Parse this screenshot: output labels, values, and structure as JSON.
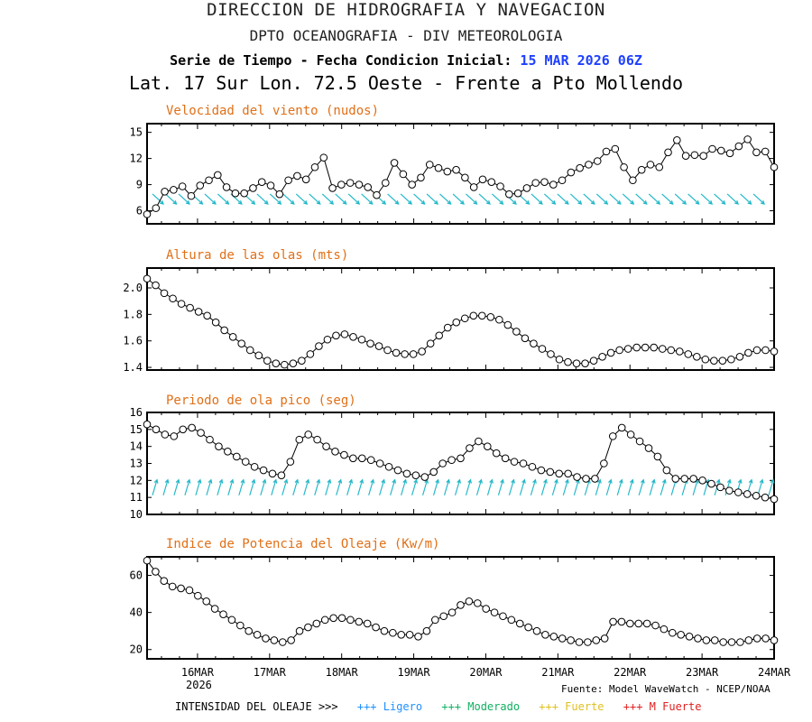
{
  "header": {
    "line1": "DIRECCION DE HIDROGRAFIA Y NAVEGACION",
    "line2": "DPTO OCEANOGRAFIA - DIV METEOROLOGIA",
    "line3_label": "Serie de Tiempo - Fecha Condicion Inicial:",
    "line3_date": "15 MAR 2026 06Z",
    "line4": "Lat. 17 Sur  Lon. 72.5 Oeste - Frente a Pto Mollendo"
  },
  "colors": {
    "title_orange": "#e07018",
    "date_blue": "#1e40ff",
    "arrow_cyan": "#22b8c8"
  },
  "x_axis": {
    "ticks": [
      "16MAR",
      "17MAR",
      "18MAR",
      "19MAR",
      "20MAR",
      "21MAR",
      "22MAR",
      "23MAR",
      "24MAR"
    ],
    "year": "2026",
    "range": [
      -0.7,
      8.0
    ]
  },
  "source": "Fuente: Model WaveWatch - NCEP/NOAA",
  "legend": {
    "prefix": "INTENSIDAD DEL OLEAJE >>>",
    "items": [
      {
        "label": "+++ Ligero",
        "color": "#1e90ff"
      },
      {
        "label": "+++ Moderado",
        "color": "#10b060"
      },
      {
        "label": "+++ Fuerte",
        "color": "#e0c020"
      },
      {
        "label": "+++ M Fuerte",
        "color": "#e02020"
      }
    ]
  },
  "chart_data": [
    {
      "type": "line",
      "title": "Velocidad del viento (nudos)",
      "yticks": [
        6,
        9,
        12,
        15
      ],
      "ylim": [
        4.5,
        16
      ],
      "arrows": "wind-direction",
      "series": [
        {
          "values": [
            5.6,
            6.3,
            8.2,
            8.4,
            8.8,
            7.7,
            8.9,
            9.5,
            10.1,
            8.7,
            8.0,
            8.0,
            8.6,
            9.3,
            8.9,
            7.9,
            9.5,
            10.0,
            9.6,
            11.0,
            12.1,
            8.6,
            9.0,
            9.2,
            9.0,
            8.7,
            7.8,
            9.2,
            11.5,
            10.2,
            9.0,
            9.8,
            11.3,
            10.9,
            10.5,
            10.7,
            9.8,
            8.7,
            9.6,
            9.3,
            8.8,
            7.9,
            8.0,
            8.6,
            9.2,
            9.3,
            9.0,
            9.5,
            10.4,
            10.9,
            11.3,
            11.7,
            12.8,
            13.1,
            11.0,
            9.5,
            10.7,
            11.3,
            11.0,
            12.7,
            14.1,
            12.3,
            12.4,
            12.3,
            13.1,
            12.9,
            12.6,
            13.4,
            14.2,
            12.7,
            12.8,
            11.0
          ]
        }
      ]
    },
    {
      "type": "line",
      "title": "Altura de las olas (mts)",
      "yticks": [
        1.4,
        1.6,
        1.8,
        2.0
      ],
      "ytick_labels": [
        "1.4",
        "1.6",
        "1.8",
        "2.0"
      ],
      "ylim": [
        1.38,
        2.15
      ],
      "series": [
        {
          "values": [
            2.07,
            2.02,
            1.96,
            1.92,
            1.88,
            1.85,
            1.82,
            1.79,
            1.74,
            1.68,
            1.63,
            1.58,
            1.53,
            1.49,
            1.45,
            1.43,
            1.42,
            1.43,
            1.45,
            1.5,
            1.56,
            1.61,
            1.64,
            1.65,
            1.63,
            1.61,
            1.58,
            1.56,
            1.53,
            1.51,
            1.5,
            1.5,
            1.52,
            1.58,
            1.64,
            1.7,
            1.74,
            1.77,
            1.79,
            1.79,
            1.78,
            1.76,
            1.72,
            1.67,
            1.62,
            1.58,
            1.54,
            1.5,
            1.46,
            1.44,
            1.43,
            1.43,
            1.45,
            1.48,
            1.51,
            1.53,
            1.54,
            1.55,
            1.55,
            1.55,
            1.54,
            1.53,
            1.52,
            1.5,
            1.48,
            1.46,
            1.45,
            1.45,
            1.46,
            1.48,
            1.51,
            1.53,
            1.53,
            1.52
          ]
        }
      ]
    },
    {
      "type": "line",
      "title": "Periodo de ola pico (seg)",
      "yticks": [
        10,
        11,
        12,
        13,
        14,
        15,
        16
      ],
      "ylim": [
        10,
        16
      ],
      "arrows": "wave-direction",
      "series": [
        {
          "values": [
            15.3,
            15.0,
            14.7,
            14.6,
            15.0,
            15.1,
            14.8,
            14.4,
            14.0,
            13.7,
            13.4,
            13.1,
            12.8,
            12.6,
            12.4,
            12.3,
            13.1,
            14.4,
            14.7,
            14.4,
            14.0,
            13.7,
            13.5,
            13.3,
            13.3,
            13.2,
            13.0,
            12.8,
            12.6,
            12.4,
            12.3,
            12.2,
            12.5,
            13.0,
            13.2,
            13.3,
            13.9,
            14.3,
            14.0,
            13.6,
            13.3,
            13.1,
            13.0,
            12.8,
            12.6,
            12.5,
            12.4,
            12.4,
            12.2,
            12.1,
            12.1,
            13.0,
            14.6,
            15.1,
            14.7,
            14.3,
            13.9,
            13.4,
            12.6,
            12.1,
            12.1,
            12.1,
            12.0,
            11.8,
            11.6,
            11.4,
            11.3,
            11.2,
            11.1,
            11.0,
            10.9
          ]
        }
      ]
    },
    {
      "type": "line",
      "title": "Indice de Potencia del Oleaje (Kw/m)",
      "yticks": [
        20,
        40,
        60
      ],
      "ylim": [
        15,
        70
      ],
      "series": [
        {
          "values": [
            68,
            62,
            57,
            54,
            53,
            52,
            49,
            46,
            42,
            39,
            36,
            33,
            30,
            28,
            26,
            25,
            24,
            25,
            30,
            32,
            34,
            36,
            37,
            37,
            36,
            35,
            34,
            32,
            30,
            29,
            28,
            28,
            27,
            30,
            36,
            38,
            40,
            44,
            46,
            45,
            42,
            40,
            38,
            36,
            34,
            32,
            30,
            28,
            27,
            26,
            25,
            24,
            24,
            25,
            26,
            35,
            35,
            34,
            34,
            34,
            33,
            31,
            29,
            28,
            27,
            26,
            25,
            25,
            24,
            24,
            24,
            25,
            26,
            26,
            25
          ]
        }
      ]
    }
  ]
}
